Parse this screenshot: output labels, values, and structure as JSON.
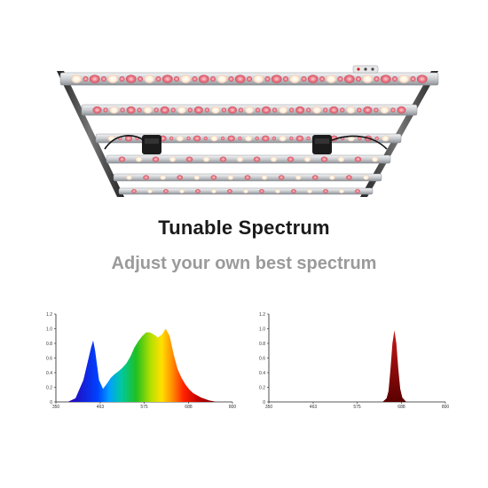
{
  "headline": "Tunable Spectrum",
  "subline": "Adjust your own best spectrum",
  "colors": {
    "headline": "#1a1a1a",
    "subline": "#9a9a9a",
    "led_red": "#e8707a",
    "led_white": "#fff6e0",
    "bar_metal": "#c9ccd0"
  },
  "chart_data": [
    {
      "type": "area",
      "title": "",
      "xlabel": "",
      "ylabel": "",
      "xlim": [
        350,
        800
      ],
      "ylim": [
        0,
        1.2
      ],
      "x_ticks": [
        "350",
        "463",
        "575",
        "688",
        "800"
      ],
      "y_ticks": [
        "0",
        "0.2",
        "0.4",
        "0.6",
        "0.8",
        "1.0",
        "1.2"
      ],
      "series": [
        {
          "x": [
            380,
            400,
            420,
            440,
            445,
            450,
            460,
            470,
            480,
            490,
            500,
            510,
            520,
            530,
            540,
            550,
            560,
            570,
            580,
            590,
            600,
            610,
            620,
            630,
            640,
            650,
            660,
            670,
            680,
            690,
            700,
            720,
            740,
            760
          ],
          "values": [
            0.0,
            0.05,
            0.3,
            0.75,
            0.84,
            0.7,
            0.3,
            0.18,
            0.25,
            0.33,
            0.38,
            0.42,
            0.47,
            0.53,
            0.62,
            0.74,
            0.83,
            0.9,
            0.95,
            0.95,
            0.92,
            0.88,
            0.92,
            1.0,
            0.9,
            0.65,
            0.45,
            0.33,
            0.24,
            0.17,
            0.12,
            0.06,
            0.02,
            0.0
          ]
        }
      ]
    },
    {
      "type": "area",
      "title": "",
      "xlabel": "",
      "ylabel": "",
      "xlim": [
        350,
        800
      ],
      "ylim": [
        0,
        1.2
      ],
      "x_ticks": [
        "350",
        "463",
        "575",
        "688",
        "800"
      ],
      "y_ticks": [
        "0",
        "0.2",
        "0.4",
        "0.6",
        "0.8",
        "1.0",
        "1.2"
      ],
      "series": [
        {
          "x": [
            640,
            650,
            655,
            660,
            665,
            670,
            675,
            680,
            685,
            690,
            700
          ],
          "values": [
            0.0,
            0.05,
            0.15,
            0.45,
            0.8,
            0.98,
            0.8,
            0.45,
            0.18,
            0.06,
            0.0
          ]
        }
      ]
    }
  ]
}
